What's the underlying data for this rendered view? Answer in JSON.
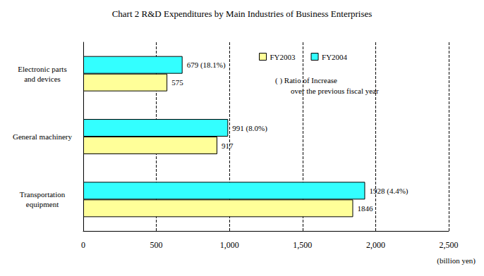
{
  "chart_data": {
    "type": "bar",
    "orientation": "horizontal",
    "title": "Chart 2 R&D Expenditures by Main Industries of Business Enterprises",
    "x_label": "(billion yen)",
    "annotation": "( ) Ratio of Increase\nover the previous fiscal year",
    "categories": [
      "Electronic parts\nand devices",
      "General machinery",
      "Transportation\nequipment"
    ],
    "series": [
      {
        "name": "FY2003",
        "color": "#ffff99",
        "values": [
          575,
          917,
          1846
        ]
      },
      {
        "name": "FY2004",
        "color": "#33ffff",
        "values": [
          679,
          991,
          1928
        ],
        "value_labels": [
          "679 (18.1%)",
          "991 (8.0%)",
          "1928 (4.4%)"
        ]
      }
    ],
    "xlim": [
      0,
      2500
    ],
    "xticks": [
      0,
      500,
      {
        "value": 1000,
        "label": "1,000"
      },
      {
        "value": 1500,
        "label": "1,500"
      },
      {
        "value": 2000,
        "label": "2,000"
      },
      {
        "value": 2500,
        "label": "2,500"
      }
    ],
    "grid": true,
    "legend": "top",
    "data_labels": true
  }
}
